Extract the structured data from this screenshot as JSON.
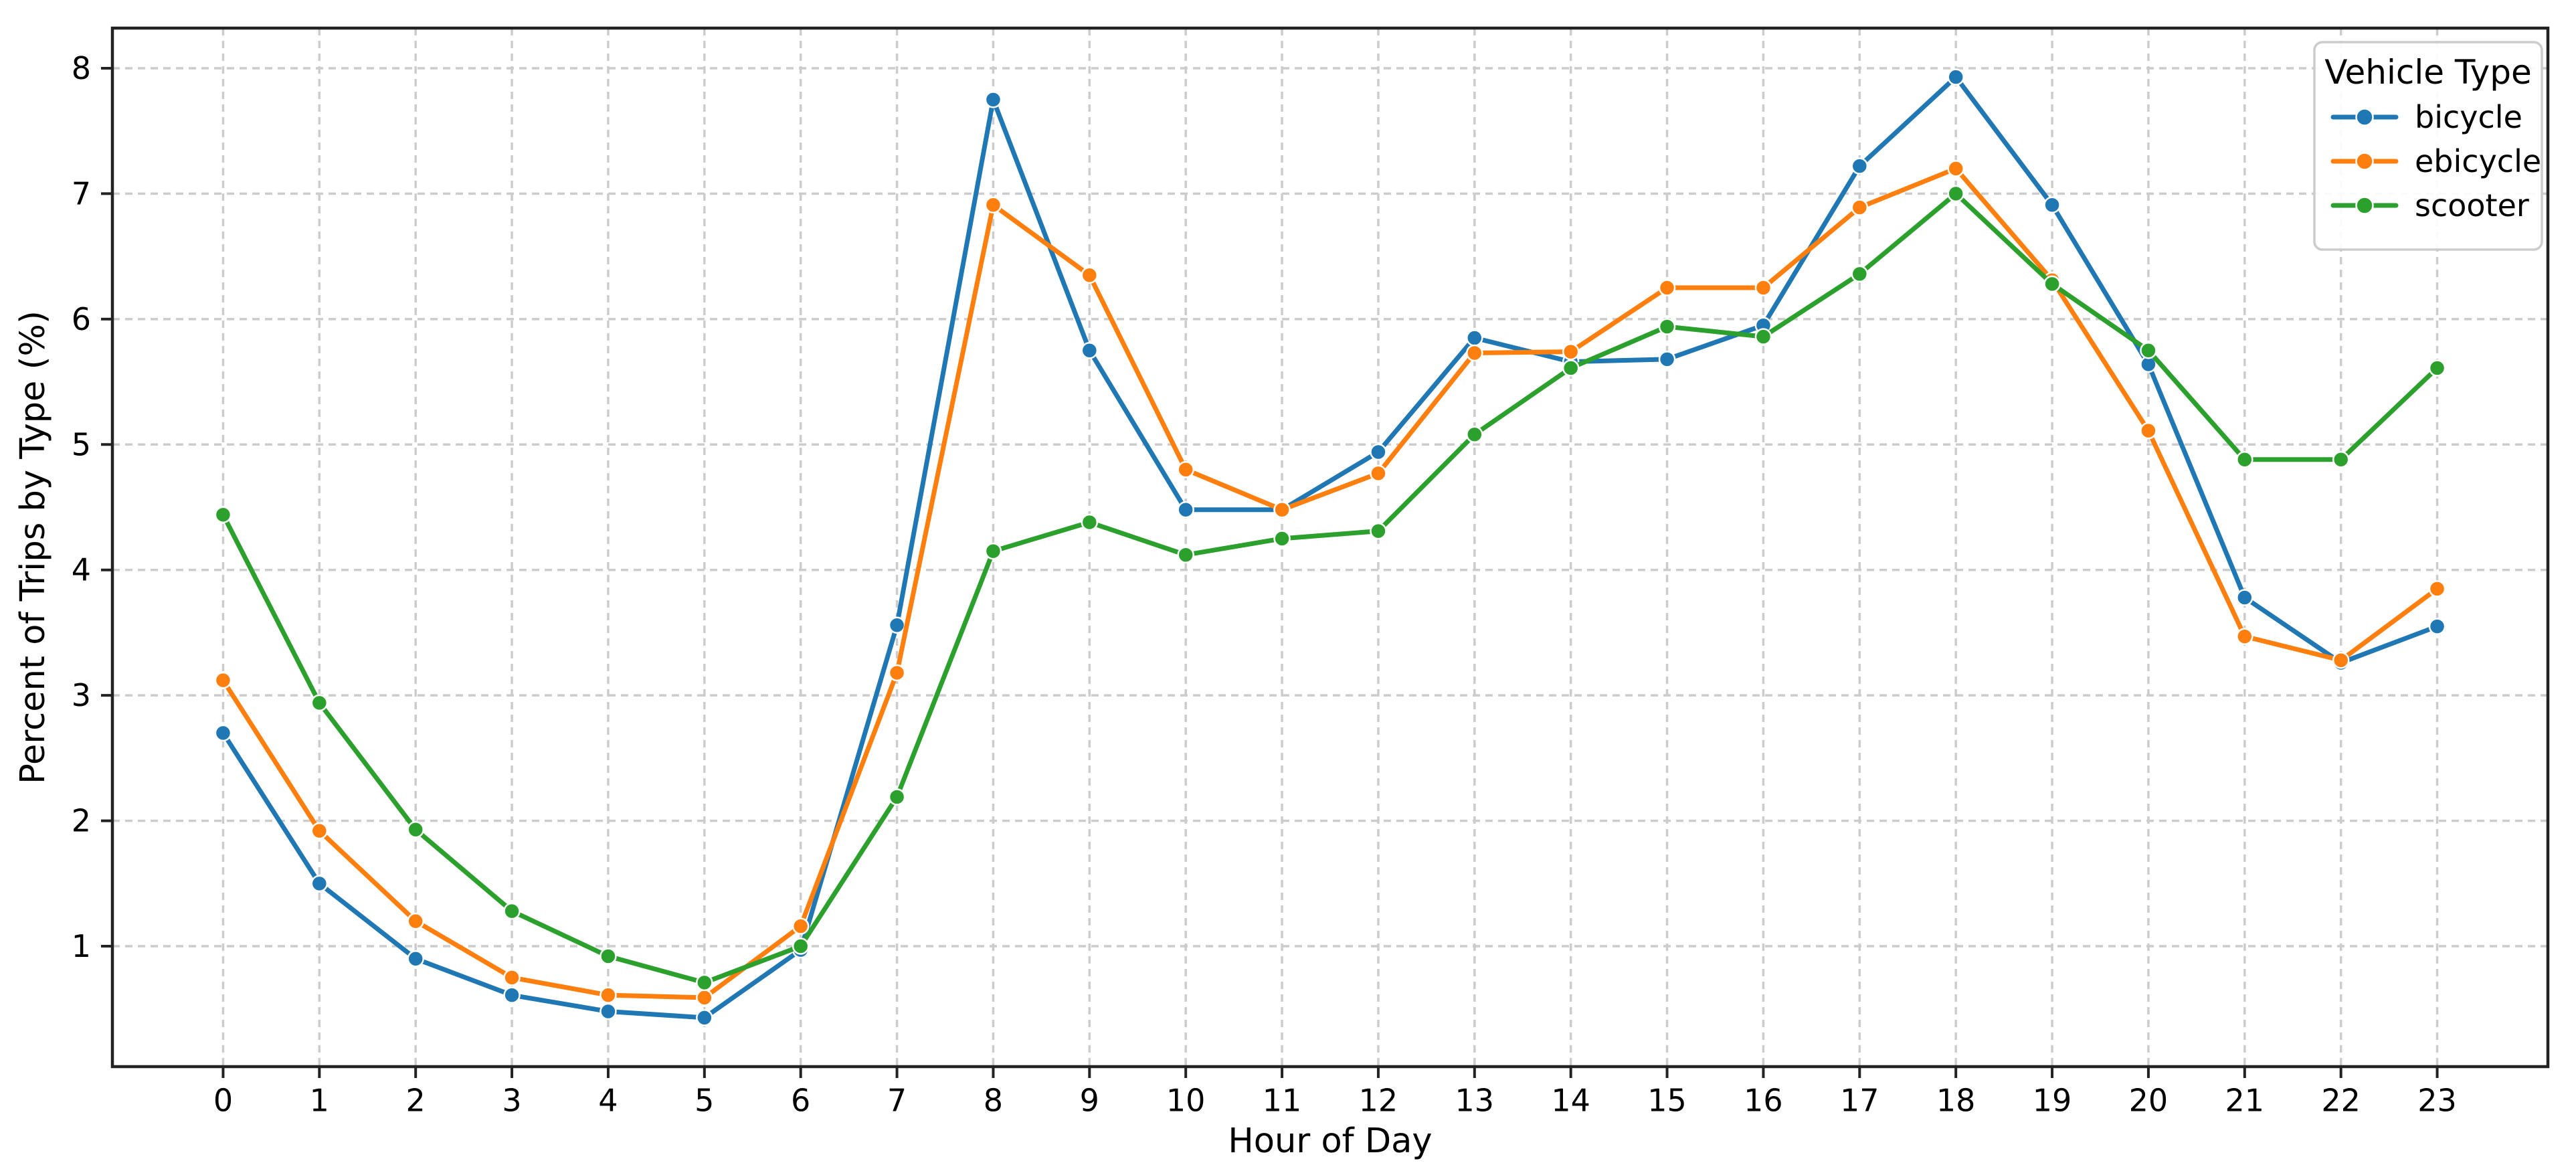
{
  "chart_data": {
    "type": "line",
    "title": "",
    "xlabel": "Hour of Day",
    "ylabel": "Percent of Trips by Type (%)",
    "x": [
      0,
      1,
      2,
      3,
      4,
      5,
      6,
      7,
      8,
      9,
      10,
      11,
      12,
      13,
      14,
      15,
      16,
      17,
      18,
      19,
      20,
      21,
      22,
      23
    ],
    "xtick_labels": [
      "0",
      "1",
      "2",
      "3",
      "4",
      "5",
      "6",
      "7",
      "8",
      "9",
      "10",
      "11",
      "12",
      "13",
      "14",
      "15",
      "16",
      "17",
      "18",
      "19",
      "20",
      "21",
      "22",
      "23"
    ],
    "ytick_values": [
      1,
      2,
      3,
      4,
      5,
      6,
      7,
      8
    ],
    "ytick_labels": [
      "1",
      "2",
      "3",
      "4",
      "5",
      "6",
      "7",
      "8"
    ],
    "xlim": [
      -1.15,
      24.15
    ],
    "ylim": [
      0.04,
      8.32
    ],
    "grid": true,
    "grid_style": "dashed",
    "legend": {
      "title": "Vehicle Type",
      "position": "upper-right"
    },
    "series": [
      {
        "name": "bicycle",
        "color": "#1f77b4",
        "values": [
          2.7,
          1.5,
          0.9,
          0.61,
          0.48,
          0.43,
          0.97,
          3.56,
          7.75,
          5.75,
          4.48,
          4.48,
          4.94,
          5.85,
          5.66,
          5.68,
          5.95,
          7.22,
          7.93,
          6.91,
          5.64,
          3.78,
          3.26,
          3.55
        ]
      },
      {
        "name": "ebicycle",
        "color": "#ff7f0e",
        "values": [
          3.12,
          1.92,
          1.2,
          0.75,
          0.61,
          0.59,
          1.16,
          3.18,
          6.91,
          6.35,
          4.8,
          4.48,
          4.77,
          5.73,
          5.74,
          6.25,
          6.25,
          6.89,
          7.2,
          6.31,
          5.11,
          3.47,
          3.28,
          3.85
        ]
      },
      {
        "name": "scooter",
        "color": "#2ca02c",
        "values": [
          4.44,
          2.94,
          1.93,
          1.28,
          0.92,
          0.71,
          1.0,
          2.19,
          4.15,
          4.38,
          4.12,
          4.25,
          4.31,
          5.08,
          5.61,
          5.94,
          5.86,
          6.36,
          7.0,
          6.28,
          5.75,
          4.88,
          4.88,
          5.61
        ]
      }
    ]
  },
  "style": {
    "background_color": "#ffffff",
    "grid_color": "#cccccc",
    "spine_color": "#222222",
    "text_color": "#000000",
    "marker_edge_color": "#ffffff"
  }
}
